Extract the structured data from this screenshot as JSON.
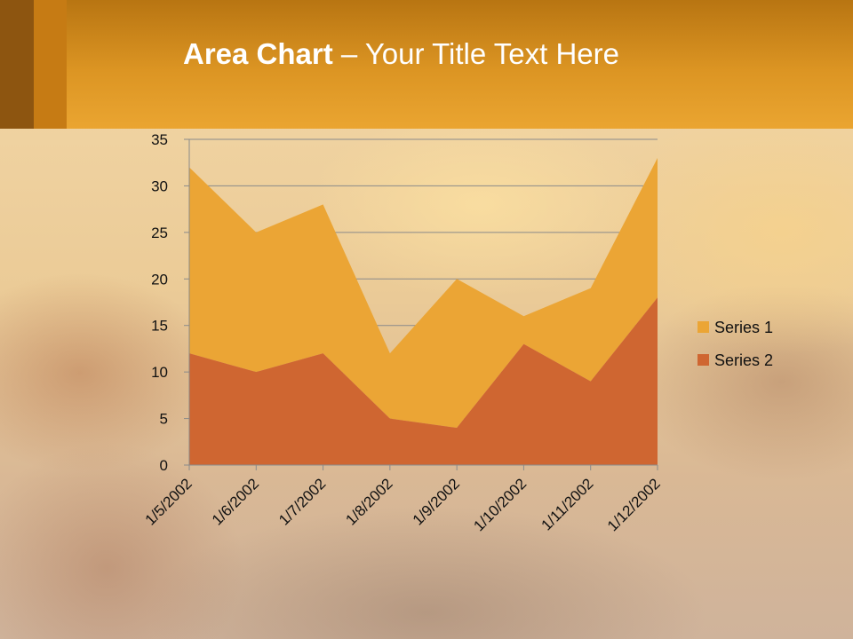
{
  "title": {
    "bold": "Area Chart",
    "rest": " – Your Title Text Here"
  },
  "chart_data": {
    "type": "area",
    "stacked": true,
    "categories": [
      "1/5/2002",
      "1/6/2002",
      "1/7/2002",
      "1/8/2002",
      "1/9/2002",
      "1/10/2002",
      "1/11/2002",
      "1/12/2002"
    ],
    "series": [
      {
        "name": "Series 1",
        "values": [
          20,
          15,
          16,
          7,
          16,
          3,
          10,
          15
        ],
        "color": "#eba535"
      },
      {
        "name": "Series 2",
        "values": [
          12,
          10,
          12,
          5,
          4,
          13,
          9,
          18
        ],
        "color": "#cf6631"
      }
    ],
    "ylim": [
      0,
      35
    ],
    "yticks": [
      "0",
      "5",
      "10",
      "15",
      "20",
      "25",
      "30",
      "35"
    ],
    "grid": true,
    "legend": "right"
  }
}
